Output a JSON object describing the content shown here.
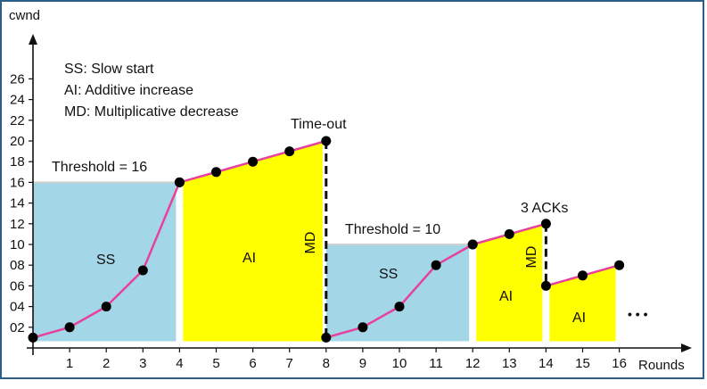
{
  "chart_data": {
    "type": "line",
    "xlabel": "Rounds",
    "ylabel": "cwnd",
    "xlim": [
      0,
      16
    ],
    "ylim": [
      0,
      28
    ],
    "x_ticks": [
      "1",
      "2",
      "3",
      "4",
      "5",
      "6",
      "7",
      "8",
      "9",
      "10",
      "11",
      "12",
      "13",
      "14",
      "15",
      "16"
    ],
    "y_ticks": [
      "02",
      "04",
      "06",
      "08",
      "10",
      "12",
      "14",
      "16",
      "18",
      "20",
      "22",
      "24",
      "26"
    ],
    "y_tick_values": [
      2,
      4,
      6,
      8,
      10,
      12,
      14,
      16,
      18,
      20,
      22,
      24,
      26
    ],
    "segments": [
      {
        "phase": "SS",
        "x": [
          0,
          1,
          2,
          3,
          4
        ],
        "y": [
          1,
          2,
          4,
          7.5,
          16
        ]
      },
      {
        "phase": "AI",
        "x": [
          4,
          5,
          6,
          7,
          8
        ],
        "y": [
          16,
          17,
          18,
          19,
          20
        ]
      },
      {
        "phase": "SS",
        "x": [
          8,
          9,
          10,
          11,
          12
        ],
        "y": [
          1,
          2,
          4,
          8,
          10
        ]
      },
      {
        "phase": "AI",
        "x": [
          12,
          13,
          14
        ],
        "y": [
          10,
          11,
          12
        ]
      },
      {
        "phase": "AI",
        "x": [
          14,
          15,
          16
        ],
        "y": [
          6,
          7,
          8
        ]
      }
    ],
    "drops": [
      {
        "x": 8,
        "from": 20,
        "to": 1,
        "label": "MD"
      },
      {
        "x": 14,
        "from": 12,
        "to": 6,
        "label": "MD"
      }
    ],
    "regions": [
      {
        "label": "SS",
        "x0": 0,
        "x1": 4,
        "top": 16,
        "color": "#a3d6e6"
      },
      {
        "label": "AI",
        "x0": 4,
        "x1": 8,
        "color": "#ffff00"
      },
      {
        "label": "SS",
        "x0": 8,
        "x1": 12,
        "top": 10,
        "color": "#a3d6e6"
      },
      {
        "label": "AI",
        "x0": 12,
        "x1": 14,
        "color": "#ffff00"
      },
      {
        "label": "AI",
        "x0": 14,
        "x1": 16,
        "color": "#ffff00"
      }
    ],
    "annotations": {
      "threshold1": "Threshold = 16",
      "threshold2": "Threshold = 10",
      "timeout": "Time-out",
      "acks": "3 ACKs",
      "continuation": "• • •"
    },
    "legend": [
      "SS: Slow start",
      "AI: Additive increase",
      "MD: Multiplicative decrease"
    ],
    "line_color": "#e8409e",
    "marker_color": "#000000",
    "frame_color": "#2b5f8a"
  }
}
